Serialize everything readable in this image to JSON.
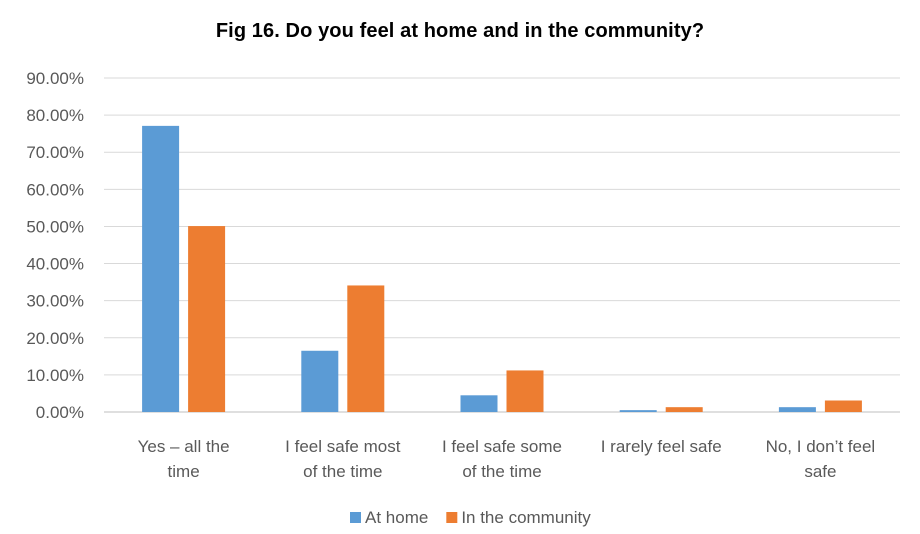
{
  "chart_data": {
    "type": "bar",
    "title": "Fig 16. Do you feel at home and in the community?",
    "xlabel": "",
    "ylabel": "",
    "ylim": [
      0,
      0.9
    ],
    "ytick_step": 0.1,
    "ytick_labels": [
      "0.00%",
      "10.00%",
      "20.00%",
      "30.00%",
      "40.00%",
      "50.00%",
      "60.00%",
      "70.00%",
      "80.00%",
      "90.00%"
    ],
    "categories": [
      [
        "Yes – all the",
        "time"
      ],
      [
        "I feel safe most",
        "of the time"
      ],
      [
        "I feel safe some",
        "of the time"
      ],
      [
        "I rarely feel safe"
      ],
      [
        "No, I don’t feel",
        "safe"
      ]
    ],
    "series": [
      {
        "name": "At home",
        "color": "#5B9BD5",
        "values": [
          0.771,
          0.165,
          0.045,
          0.005,
          0.013
        ]
      },
      {
        "name": "In the community",
        "color": "#ED7D31",
        "values": [
          0.501,
          0.341,
          0.112,
          0.013,
          0.031
        ]
      }
    ],
    "grid": true,
    "legend": "bottom-center"
  }
}
